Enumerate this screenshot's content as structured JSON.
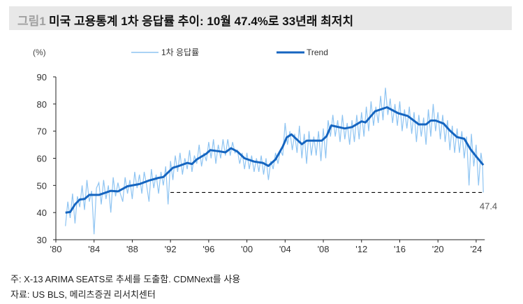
{
  "header": {
    "figure_label": "그림1",
    "title": "미국 고용통계 1차 응답률 추이: 10월 47.4%로 33년래 최저치"
  },
  "footer": {
    "note": "주: X-13 ARIMA SEATS로 추세를 도출함. CDMNext를 사용",
    "source": "자료: US BLS, 메리츠증권 리서치센터"
  },
  "chart_data": {
    "type": "line",
    "ylabel": "(%)",
    "ylim": [
      30,
      90
    ],
    "yticks": [
      30,
      40,
      50,
      60,
      70,
      80,
      90
    ],
    "xlim": [
      1980,
      2025
    ],
    "xticks": [
      {
        "x": 1980,
        "label": "'80"
      },
      {
        "x": 1984,
        "label": "'84"
      },
      {
        "x": 1988,
        "label": "'88"
      },
      {
        "x": 1992,
        "label": "'92"
      },
      {
        "x": 1996,
        "label": "'96"
      },
      {
        "x": 2000,
        "label": "'00"
      },
      {
        "x": 2004,
        "label": "'04"
      },
      {
        "x": 2008,
        "label": "'08"
      },
      {
        "x": 2012,
        "label": "'12"
      },
      {
        "x": 2016,
        "label": "'16"
      },
      {
        "x": 2020,
        "label": "'20"
      },
      {
        "x": 2024,
        "label": "'24"
      }
    ],
    "grid": false,
    "legend": "top",
    "colors": {
      "raw": "#8ec4f2",
      "trend": "#1565c0",
      "reference": "#000000"
    },
    "reference_line": {
      "value": 47.4,
      "from": 1992,
      "to": 2024.8,
      "label": "47.4",
      "style": "dashed"
    },
    "series": [
      {
        "name": "1차 응답률",
        "points": [
          [
            "1981-01",
            35
          ],
          [
            "1981-04",
            44
          ],
          [
            "1981-07",
            38
          ],
          [
            "1981-10",
            47
          ],
          [
            "1982-01",
            36
          ],
          [
            "1982-04",
            46
          ],
          [
            "1982-07",
            42
          ],
          [
            "1982-10",
            50
          ],
          [
            "1983-01",
            41
          ],
          [
            "1983-04",
            52
          ],
          [
            "1983-07",
            44
          ],
          [
            "1983-10",
            48
          ],
          [
            "1984-01",
            32
          ],
          [
            "1984-04",
            49
          ],
          [
            "1984-07",
            51
          ],
          [
            "1984-10",
            43
          ],
          [
            "1985-01",
            52
          ],
          [
            "1985-04",
            45
          ],
          [
            "1985-07",
            50
          ],
          [
            "1985-10",
            40
          ],
          [
            "1986-01",
            53
          ],
          [
            "1986-04",
            46
          ],
          [
            "1986-07",
            51
          ],
          [
            "1986-10",
            47
          ],
          [
            "1987-01",
            44
          ],
          [
            "1987-04",
            53
          ],
          [
            "1987-07",
            47
          ],
          [
            "1987-10",
            52
          ],
          [
            "1988-01",
            45
          ],
          [
            "1988-04",
            55
          ],
          [
            "1988-07",
            49
          ],
          [
            "1988-10",
            54
          ],
          [
            "1989-01",
            47
          ],
          [
            "1989-04",
            55
          ],
          [
            "1989-07",
            50
          ],
          [
            "1989-10",
            44
          ],
          [
            "1990-01",
            56
          ],
          [
            "1990-04",
            49
          ],
          [
            "1990-07",
            54
          ],
          [
            "1990-10",
            47
          ],
          [
            "1991-01",
            55
          ],
          [
            "1991-04",
            50
          ],
          [
            "1991-07",
            57
          ],
          [
            "1991-10",
            43
          ],
          [
            "1992-01",
            59
          ],
          [
            "1992-04",
            52
          ],
          [
            "1992-07",
            61
          ],
          [
            "1992-10",
            55
          ],
          [
            "1993-01",
            62
          ],
          [
            "1993-04",
            54
          ],
          [
            "1993-07",
            60
          ],
          [
            "1993-10",
            56
          ],
          [
            "1994-01",
            63
          ],
          [
            "1994-04",
            55
          ],
          [
            "1994-07",
            61
          ],
          [
            "1994-10",
            58
          ],
          [
            "1995-01",
            65
          ],
          [
            "1995-04",
            57
          ],
          [
            "1995-07",
            62
          ],
          [
            "1995-10",
            59
          ],
          [
            "1996-01",
            66
          ],
          [
            "1996-04",
            60
          ],
          [
            "1996-07",
            67
          ],
          [
            "1996-10",
            58
          ],
          [
            "1997-01",
            65
          ],
          [
            "1997-04",
            60
          ],
          [
            "1997-07",
            67
          ],
          [
            "1997-10",
            61
          ],
          [
            "1998-01",
            67
          ],
          [
            "1998-04",
            61
          ],
          [
            "1998-07",
            66
          ],
          [
            "1998-10",
            62
          ],
          [
            "1999-01",
            63
          ],
          [
            "1999-04",
            58
          ],
          [
            "1999-07",
            62
          ],
          [
            "1999-10",
            56
          ],
          [
            "2000-01",
            62
          ],
          [
            "2000-04",
            56
          ],
          [
            "2000-07",
            61
          ],
          [
            "2000-10",
            55
          ],
          [
            "2001-01",
            60
          ],
          [
            "2001-04",
            55
          ],
          [
            "2001-07",
            61
          ],
          [
            "2001-10",
            54
          ],
          [
            "2002-01",
            60
          ],
          [
            "2002-04",
            52
          ],
          [
            "2002-07",
            59
          ],
          [
            "2002-10",
            56
          ],
          [
            "2003-01",
            62
          ],
          [
            "2003-04",
            58
          ],
          [
            "2003-07",
            63
          ],
          [
            "2003-10",
            61
          ],
          [
            "2004-01",
            73
          ],
          [
            "2004-04",
            65
          ],
          [
            "2004-07",
            70
          ],
          [
            "2004-10",
            63
          ],
          [
            "2005-01",
            69
          ],
          [
            "2005-04",
            62
          ],
          [
            "2005-07",
            72
          ],
          [
            "2005-10",
            60
          ],
          [
            "2006-01",
            69
          ],
          [
            "2006-04",
            58
          ],
          [
            "2006-07",
            70
          ],
          [
            "2006-10",
            61
          ],
          [
            "2007-01",
            68
          ],
          [
            "2007-04",
            61
          ],
          [
            "2007-07",
            70
          ],
          [
            "2007-10",
            59
          ],
          [
            "2008-01",
            71
          ],
          [
            "2008-04",
            60
          ],
          [
            "2008-07",
            74
          ],
          [
            "2008-10",
            68
          ],
          [
            "2009-01",
            76
          ],
          [
            "2009-04",
            68
          ],
          [
            "2009-07",
            74
          ],
          [
            "2009-10",
            66
          ],
          [
            "2010-01",
            76
          ],
          [
            "2010-04",
            67
          ],
          [
            "2010-07",
            73
          ],
          [
            "2010-10",
            65
          ],
          [
            "2011-01",
            74
          ],
          [
            "2011-04",
            66
          ],
          [
            "2011-07",
            76
          ],
          [
            "2011-10",
            67
          ],
          [
            "2012-01",
            77
          ],
          [
            "2012-04",
            68
          ],
          [
            "2012-07",
            79
          ],
          [
            "2012-10",
            70
          ],
          [
            "2013-01",
            81
          ],
          [
            "2013-04",
            72
          ],
          [
            "2013-07",
            79
          ],
          [
            "2013-10",
            73
          ],
          [
            "2014-01",
            83
          ],
          [
            "2014-04",
            74
          ],
          [
            "2014-07",
            86
          ],
          [
            "2014-10",
            76
          ],
          [
            "2015-01",
            82
          ],
          [
            "2015-04",
            73
          ],
          [
            "2015-07",
            80
          ],
          [
            "2015-10",
            72
          ],
          [
            "2016-01",
            81
          ],
          [
            "2016-04",
            70
          ],
          [
            "2016-07",
            78
          ],
          [
            "2016-10",
            71
          ],
          [
            "2017-01",
            79
          ],
          [
            "2017-04",
            69
          ],
          [
            "2017-07",
            77
          ],
          [
            "2017-10",
            66
          ],
          [
            "2018-01",
            76
          ],
          [
            "2018-04",
            68
          ],
          [
            "2018-07",
            75
          ],
          [
            "2018-10",
            65
          ],
          [
            "2019-01",
            78
          ],
          [
            "2019-04",
            68
          ],
          [
            "2019-07",
            80
          ],
          [
            "2019-10",
            70
          ],
          [
            "2020-01",
            77
          ],
          [
            "2020-04",
            67
          ],
          [
            "2020-07",
            76
          ],
          [
            "2020-10",
            66
          ],
          [
            "2021-01",
            74
          ],
          [
            "2021-04",
            63
          ],
          [
            "2021-07",
            72
          ],
          [
            "2021-10",
            62
          ],
          [
            "2022-01",
            71
          ],
          [
            "2022-04",
            62
          ],
          [
            "2022-07",
            70
          ],
          [
            "2022-10",
            60
          ],
          [
            "2023-01",
            68
          ],
          [
            "2023-04",
            50
          ],
          [
            "2023-07",
            69
          ],
          [
            "2023-10",
            57
          ],
          [
            "2024-01",
            65
          ],
          [
            "2024-04",
            50
          ],
          [
            "2024-07",
            62
          ],
          [
            "2024-09",
            58
          ],
          [
            "2024-10",
            47.4
          ]
        ]
      },
      {
        "name": "Trend",
        "points": [
          [
            "1981-01",
            40
          ],
          [
            "1981-07",
            40.2
          ],
          [
            "1982-01",
            43
          ],
          [
            "1982-07",
            44.8
          ],
          [
            "1983-01",
            45
          ],
          [
            "1983-07",
            46.5
          ],
          [
            "1984-07",
            46.5
          ],
          [
            "1985-10",
            48
          ],
          [
            "1986-07",
            47.8
          ],
          [
            "1987-07",
            49.7
          ],
          [
            "1988-10",
            50.5
          ],
          [
            "1989-10",
            51.8
          ],
          [
            "1990-10",
            52.8
          ],
          [
            "1991-04",
            53.1
          ],
          [
            "1992-04",
            56.5
          ],
          [
            "1992-10",
            57
          ],
          [
            "1993-10",
            58.3
          ],
          [
            "1994-04",
            57.9
          ],
          [
            "1994-10",
            59.6
          ],
          [
            "1995-10",
            61.7
          ],
          [
            "1996-03",
            63
          ],
          [
            "1997-04",
            62.5
          ],
          [
            "1997-10",
            62.2
          ],
          [
            "1998-05",
            63.7
          ],
          [
            "1999-01",
            62.5
          ],
          [
            "1999-10",
            60
          ],
          [
            "2000-10",
            58.8
          ],
          [
            "2001-09",
            58.3
          ],
          [
            "2002-04",
            57.2
          ],
          [
            "2003-01",
            59.6
          ],
          [
            "2003-10",
            64.3
          ],
          [
            "2004-03",
            67.7
          ],
          [
            "2004-09",
            68.8
          ],
          [
            "2005-10",
            65.2
          ],
          [
            "2006-04",
            66.5
          ],
          [
            "2007-11",
            66.5
          ],
          [
            "2008-05",
            68.1
          ],
          [
            "2008-11",
            72.1
          ],
          [
            "2010-04",
            71
          ],
          [
            "2011-01",
            71.5
          ],
          [
            "2012-01",
            73.6
          ],
          [
            "2012-06",
            73.2
          ],
          [
            "2013-06",
            77.3
          ],
          [
            "2014-09",
            78.8
          ],
          [
            "2015-11",
            76.6
          ],
          [
            "2016-11",
            75.6
          ],
          [
            "2018-01",
            72.5
          ],
          [
            "2018-10",
            72.5
          ],
          [
            "2019-04",
            73.9
          ],
          [
            "2019-10",
            73.9
          ],
          [
            "2020-08",
            72.8
          ],
          [
            "2021-04",
            70.2
          ],
          [
            "2022-01",
            67.8
          ],
          [
            "2022-10",
            67.2
          ],
          [
            "2023-06",
            63.3
          ],
          [
            "2024-01",
            60.7
          ],
          [
            "2024-10",
            57.5
          ]
        ]
      }
    ]
  }
}
